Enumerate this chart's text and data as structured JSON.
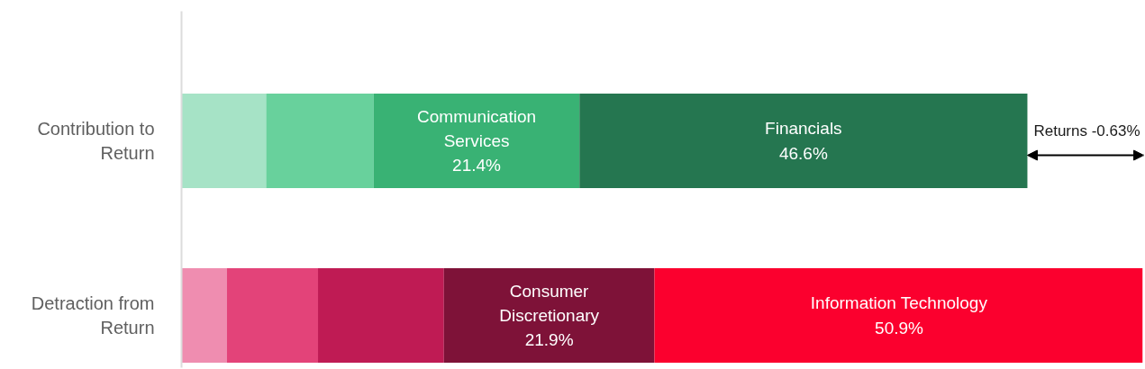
{
  "chart_data": {
    "type": "bar",
    "orientation": "horizontal",
    "stacked": true,
    "grid": false,
    "tick_labels": "y",
    "xlim": [
      0,
      100
    ],
    "categories": [
      "Contribution to Return",
      "Detraction from Return"
    ],
    "series": [
      {
        "color": "#a6e3c6",
        "values": [
          8.8,
          null
        ]
      },
      {
        "color": "#68d19c",
        "values": [
          11.2,
          null
        ]
      },
      {
        "name": "Communication Services",
        "color": "#39b274",
        "values": [
          21.4,
          null
        ],
        "value_labels": [
          "21.4%",
          null
        ]
      },
      {
        "name": "Financials",
        "color": "#257650",
        "values": [
          46.6,
          null
        ],
        "value_labels": [
          "46.6%",
          null
        ]
      },
      {
        "color": "#ef8db0",
        "values": [
          null,
          4.7
        ]
      },
      {
        "color": "#e34379",
        "values": [
          null,
          9.5
        ]
      },
      {
        "color": "#bf1b54",
        "values": [
          null,
          13.1
        ]
      },
      {
        "name": "Consumer Discretionary",
        "color": "#7e1238",
        "values": [
          null,
          21.9
        ],
        "value_labels": [
          null,
          "21.9%"
        ]
      },
      {
        "name": "Information Technology",
        "color": "#fb002e",
        "values": [
          null,
          50.9
        ],
        "value_labels": [
          null,
          "50.9%"
        ]
      }
    ],
    "annotations": [
      "Returns -0.63%"
    ]
  }
}
